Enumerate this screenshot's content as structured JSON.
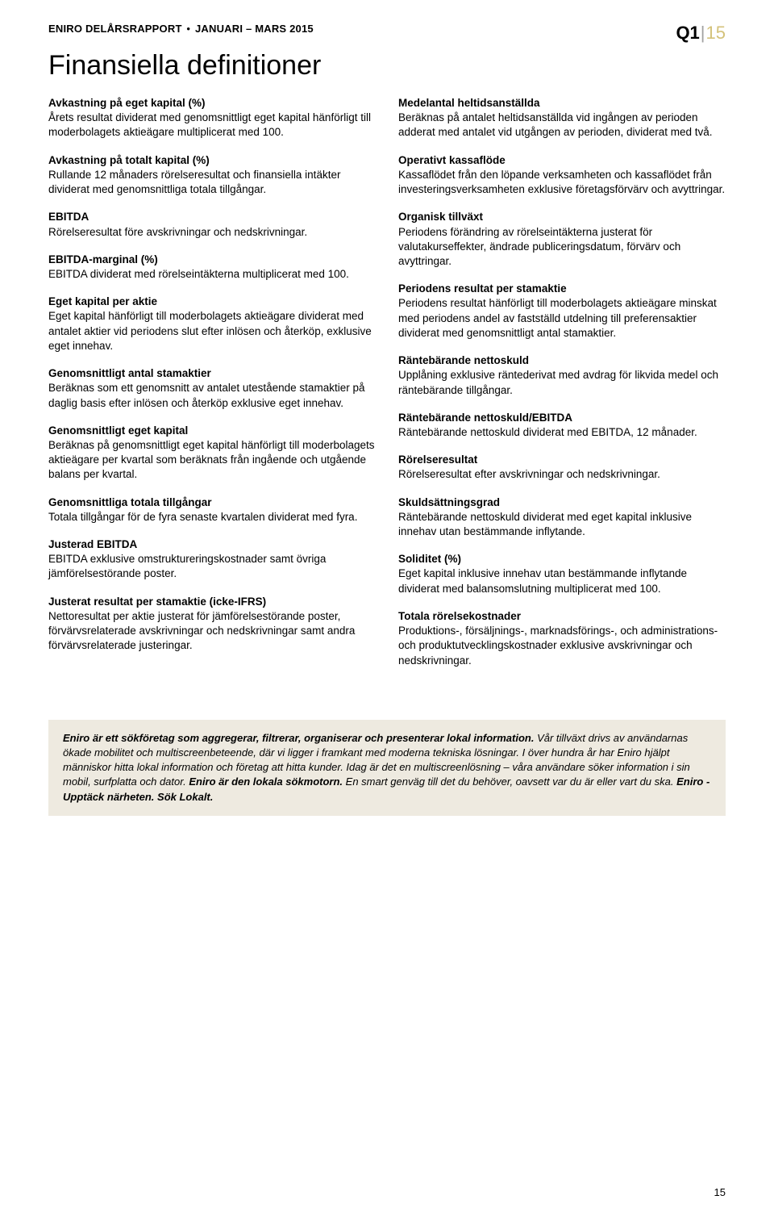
{
  "header": {
    "company": "ENIRO DELÅRSRAPPORT",
    "period": "JANUARI – MARS 2015",
    "quarter_label": "Q1",
    "quarter_year": "15"
  },
  "title": "Finansiella definitioner",
  "left_defs": [
    {
      "term": "Avkastning på eget kapital (%)",
      "body": "Årets resultat dividerat med genomsnittligt eget kapital hänförligt till moderbolagets aktieägare multiplicerat med 100."
    },
    {
      "term": "Avkastning på totalt kapital (%)",
      "body": "Rullande 12 månaders rörelseresultat och finansiella intäkter dividerat med genomsnittliga totala tillgångar."
    },
    {
      "term": "EBITDA",
      "body": "Rörelseresultat före avskrivningar och nedskrivningar."
    },
    {
      "term": "EBITDA-marginal (%)",
      "body": "EBITDA dividerat med rörelseintäkterna multiplicerat med 100."
    },
    {
      "term": "Eget kapital per aktie",
      "body": "Eget kapital hänförligt till moderbolagets aktieägare dividerat med antalet aktier vid periodens slut efter inlösen och återköp, exklusive eget innehav."
    },
    {
      "term": "Genomsnittligt antal stamaktier",
      "body": "Beräknas som ett genomsnitt av antalet utestående stamaktier på daglig basis efter inlösen och återköp exklusive eget innehav."
    },
    {
      "term": "Genomsnittligt eget kapital",
      "body": "Beräknas på genomsnittligt eget kapital hänförligt till moderbolagets aktieägare per kvartal som beräknats från ingående och utgående balans per kvartal."
    },
    {
      "term": "Genomsnittliga totala tillgångar",
      "body": "Totala tillgångar för de fyra senaste kvartalen dividerat med fyra."
    },
    {
      "term": "Justerad EBITDA",
      "body": "EBITDA exklusive omstruktureringskostnader samt övriga jämförelsestörande poster."
    },
    {
      "term": "Justerat resultat per stamaktie (icke-IFRS)",
      "body": "Nettoresultat per aktie justerat för jämförelsestörande poster, förvärvsrelaterade avskrivningar och nedskrivningar samt andra förvärvsrelaterade justeringar."
    }
  ],
  "right_defs": [
    {
      "term": "Medelantal heltidsanställda",
      "body": "Beräknas på antalet heltidsanställda vid ingången av perioden adderat med antalet vid utgången av perioden, dividerat med två."
    },
    {
      "term": "Operativt kassaflöde",
      "body": "Kassaflödet från den löpande verksamheten och kassaflödet från investeringsverksamheten exklusive företagsförvärv och avyttringar."
    },
    {
      "term": "Organisk tillväxt",
      "body": "Periodens förändring av rörelseintäkterna justerat för valutakurseffekter, ändrade publiceringsdatum, förvärv och avyttringar."
    },
    {
      "term": "Periodens resultat per stamaktie",
      "body": "Periodens resultat hänförligt till moderbolagets aktieägare minskat med periodens andel av fastställd utdelning till preferensaktier dividerat med genomsnittligt antal stamaktier."
    },
    {
      "term": "Räntebärande nettoskuld",
      "body": "Upplåning exklusive räntederivat med avdrag för likvida medel och räntebärande tillgångar."
    },
    {
      "term": "Räntebärande nettoskuld/EBITDA",
      "body": "Räntebärande nettoskuld dividerat med EBITDA, 12 månader."
    },
    {
      "term": "Rörelseresultat",
      "body": "Rörelseresultat efter avskrivningar och nedskrivningar."
    },
    {
      "term": "Skuldsättningsgrad",
      "body": "Räntebärande nettoskuld dividerat med eget kapital inklusive innehav utan bestämmande inflytande."
    },
    {
      "term": "Soliditet (%)",
      "body": "Eget kapital inklusive innehav utan bestämmande inflytande dividerat med balansomslutning multiplicerat med 100."
    },
    {
      "term": "Totala rörelsekostnader",
      "body": "Produktions-, försäljnings-, marknadsförings-, och administrations- och produktutvecklingskostnader exklusive avskrivningar och nedskrivningar."
    }
  ],
  "footer": {
    "lead_bold": "Eniro är ett sökföretag som aggregerar, filtrerar, organiserar och presenterar lokal information.",
    "body1": " Vår tillväxt drivs av användarnas ökade mobilitet och multiscreenbeteende, där vi ligger i framkant med moderna tekniska lösningar. I över hundra år har Eniro hjälpt människor hitta lokal information och företag att hitta kunder. Idag är det en multiscreenlösning – våra användare söker information i sin mobil, surfplatta och dator. ",
    "mid_bold1": "Eniro är den lokala sökmotorn.",
    "body2": " En smart genväg till det du behöver, oavsett var du är eller vart du ska. ",
    "mid_bold2": "Eniro - Upptäck närheten. Sök Lokalt."
  },
  "page_number": "15",
  "colors": {
    "background": "#ffffff",
    "text": "#000000",
    "footer_bg": "#eeeae0",
    "q1_year": "#d4c27a",
    "q1_sep": "#a0a0a0"
  }
}
